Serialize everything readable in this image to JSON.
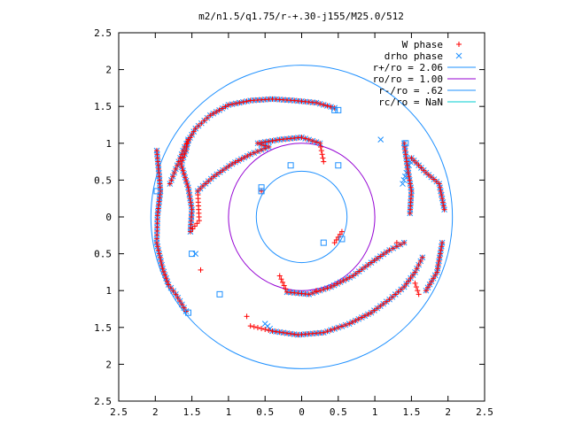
{
  "chart_data": {
    "type": "scatter",
    "title": "m2/n1.5/q1.75/r-+.30-j155/M25.0/512",
    "xlabel": "",
    "ylabel": "",
    "xlim": [
      -2.5,
      2.5
    ],
    "ylim": [
      -2.5,
      2.5
    ],
    "xticks": [
      -2.5,
      -2,
      -1.5,
      -1,
      -0.5,
      0,
      0.5,
      1,
      1.5,
      2,
      2.5
    ],
    "yticks": [
      -2.5,
      -2,
      -1.5,
      -1,
      -0.5,
      0,
      0.5,
      1,
      1.5,
      2,
      2.5
    ],
    "xtick_labels": [
      "2.5",
      "2",
      "1.5",
      "1",
      "0.5",
      "0",
      "0.5",
      "1",
      "1.5",
      "2",
      "2.5"
    ],
    "ytick_labels": [
      "2.5",
      "2",
      "1.5",
      "1",
      "0.5",
      "0",
      "0.5",
      "1",
      "1.5",
      "2",
      "2.5"
    ],
    "grid": false,
    "legend_position": "top-right",
    "series": [
      {
        "name": "W phase",
        "marker": "+",
        "color": "#ff0000",
        "points": [
          [
            -1.98,
            0.9
          ],
          [
            -1.95,
            0.6
          ],
          [
            -1.93,
            0.35
          ],
          [
            -1.97,
            0.02
          ],
          [
            -1.98,
            -0.35
          ],
          [
            -1.9,
            -0.7
          ],
          [
            -1.82,
            -0.92
          ],
          [
            -1.72,
            -1.05
          ],
          [
            -1.58,
            -1.28
          ],
          [
            -1.8,
            0.45
          ],
          [
            -1.7,
            0.7
          ],
          [
            -1.6,
            0.95
          ],
          [
            -1.45,
            1.2
          ],
          [
            -1.25,
            1.38
          ],
          [
            -1.0,
            1.52
          ],
          [
            -0.7,
            1.58
          ],
          [
            -0.4,
            1.6
          ],
          [
            -0.1,
            1.58
          ],
          [
            0.2,
            1.55
          ],
          [
            0.45,
            1.48
          ],
          [
            -1.55,
            1.05
          ],
          [
            -1.58,
            0.9
          ],
          [
            -1.65,
            0.72
          ],
          [
            -1.55,
            0.4
          ],
          [
            -1.5,
            0.1
          ],
          [
            -1.52,
            -0.2
          ],
          [
            -1.4,
            -0.05
          ],
          [
            -1.42,
            0.35
          ],
          [
            -1.35,
            0.42
          ],
          [
            -1.2,
            0.55
          ],
          [
            -0.95,
            0.72
          ],
          [
            -0.7,
            0.85
          ],
          [
            -0.45,
            0.95
          ],
          [
            -0.6,
            1.0
          ],
          [
            -0.3,
            1.05
          ],
          [
            0.0,
            1.08
          ],
          [
            0.25,
            1.0
          ],
          [
            0.3,
            0.75
          ],
          [
            1.4,
            1.0
          ],
          [
            1.45,
            0.65
          ],
          [
            1.5,
            0.35
          ],
          [
            1.48,
            0.05
          ],
          [
            1.5,
            0.8
          ],
          [
            1.7,
            0.6
          ],
          [
            1.88,
            0.45
          ],
          [
            1.95,
            0.1
          ],
          [
            1.92,
            -0.35
          ],
          [
            1.85,
            -0.75
          ],
          [
            1.7,
            -1.0
          ],
          [
            1.4,
            -0.35
          ],
          [
            1.2,
            -0.45
          ],
          [
            0.95,
            -0.62
          ],
          [
            0.7,
            -0.8
          ],
          [
            0.4,
            -0.95
          ],
          [
            0.1,
            -1.05
          ],
          [
            -0.2,
            -1.02
          ],
          [
            -0.3,
            -0.8
          ],
          [
            1.65,
            -0.55
          ],
          [
            1.55,
            -0.75
          ],
          [
            1.4,
            -0.95
          ],
          [
            1.2,
            -1.12
          ],
          [
            0.95,
            -1.3
          ],
          [
            0.65,
            -1.45
          ],
          [
            0.3,
            -1.57
          ],
          [
            -0.05,
            -1.6
          ],
          [
            -0.4,
            -1.55
          ],
          [
            -0.7,
            -1.48
          ],
          [
            1.55,
            -0.9
          ],
          [
            1.6,
            -1.05
          ],
          [
            0.45,
            -0.35
          ],
          [
            0.55,
            -0.2
          ],
          [
            0.2,
            -1.0
          ],
          [
            -0.55,
            0.35
          ],
          [
            -1.38,
            -0.72
          ],
          [
            -0.75,
            -1.35
          ],
          [
            1.3,
            -0.35
          ]
        ]
      },
      {
        "name": "drho phase",
        "marker": "x",
        "color": "#1e90ff",
        "points": [
          [
            -1.98,
            0.9
          ],
          [
            -1.95,
            0.6
          ],
          [
            -1.93,
            0.35
          ],
          [
            -1.97,
            0.02
          ],
          [
            -1.98,
            -0.35
          ],
          [
            -1.9,
            -0.7
          ],
          [
            -1.82,
            -0.92
          ],
          [
            -1.72,
            -1.05
          ],
          [
            -1.58,
            -1.28
          ],
          [
            -1.8,
            0.45
          ],
          [
            -1.7,
            0.7
          ],
          [
            -1.6,
            0.95
          ],
          [
            -1.45,
            1.2
          ],
          [
            -1.25,
            1.38
          ],
          [
            -1.0,
            1.52
          ],
          [
            -0.7,
            1.58
          ],
          [
            -0.4,
            1.6
          ],
          [
            -0.1,
            1.58
          ],
          [
            0.2,
            1.55
          ],
          [
            0.45,
            1.48
          ],
          [
            -1.55,
            1.05
          ],
          [
            -1.58,
            0.9
          ],
          [
            -1.65,
            0.72
          ],
          [
            -1.55,
            0.4
          ],
          [
            -1.5,
            0.1
          ],
          [
            -1.52,
            -0.2
          ],
          [
            -1.42,
            0.35
          ],
          [
            -1.35,
            0.42
          ],
          [
            -1.2,
            0.55
          ],
          [
            -0.95,
            0.72
          ],
          [
            -0.7,
            0.85
          ],
          [
            -0.45,
            0.95
          ],
          [
            -0.6,
            1.0
          ],
          [
            -0.3,
            1.05
          ],
          [
            0.0,
            1.08
          ],
          [
            0.25,
            1.0
          ],
          [
            1.4,
            1.0
          ],
          [
            1.45,
            0.65
          ],
          [
            1.5,
            0.35
          ],
          [
            1.48,
            0.05
          ],
          [
            1.08,
            1.05
          ],
          [
            1.38,
            0.45
          ],
          [
            1.5,
            0.8
          ],
          [
            1.7,
            0.6
          ],
          [
            1.88,
            0.45
          ],
          [
            1.95,
            0.1
          ],
          [
            1.92,
            -0.35
          ],
          [
            1.85,
            -0.75
          ],
          [
            1.7,
            -1.0
          ],
          [
            1.4,
            -0.35
          ],
          [
            1.2,
            -0.45
          ],
          [
            0.95,
            -0.62
          ],
          [
            0.7,
            -0.8
          ],
          [
            0.4,
            -0.95
          ],
          [
            0.1,
            -1.05
          ],
          [
            -0.2,
            -1.02
          ],
          [
            1.65,
            -0.55
          ],
          [
            1.55,
            -0.75
          ],
          [
            1.4,
            -0.95
          ],
          [
            1.2,
            -1.12
          ],
          [
            0.95,
            -1.3
          ],
          [
            0.65,
            -1.45
          ],
          [
            0.3,
            -1.57
          ],
          [
            -0.05,
            -1.6
          ],
          [
            -0.4,
            -1.55
          ],
          [
            -0.5,
            -1.45
          ],
          [
            -1.45,
            -0.5
          ]
        ]
      },
      {
        "name": "r+/ro = 2.06",
        "type": "circle",
        "radius": 2.06,
        "color": "#1e90ff"
      },
      {
        "name": "ro/ro = 1.00",
        "type": "circle",
        "radius": 1.0,
        "color": "#9400d3"
      },
      {
        "name": "r-/ro = .62",
        "type": "circle",
        "radius": 0.62,
        "color": "#1e90ff"
      },
      {
        "name": "rc/ro = NaN",
        "type": "circle",
        "radius": null,
        "color": "#00ced1"
      }
    ],
    "open_square_markers": [
      [
        -1.98,
        0.35
      ],
      [
        -1.55,
        -1.3
      ],
      [
        -1.5,
        -0.5
      ],
      [
        -1.12,
        -1.05
      ],
      [
        -0.55,
        0.4
      ],
      [
        -0.55,
        0.35
      ],
      [
        -0.15,
        0.7
      ],
      [
        0.5,
        1.45
      ],
      [
        0.45,
        1.45
      ],
      [
        0.5,
        0.7
      ],
      [
        0.55,
        -0.3
      ],
      [
        0.3,
        -0.35
      ],
      [
        1.42,
        1.0
      ]
    ]
  },
  "legend": [
    {
      "label": "W phase",
      "marker": "+",
      "color": "#ff0000"
    },
    {
      "label": "drho phase",
      "marker": "x",
      "color": "#1e90ff"
    },
    {
      "label": "r+/ro = 2.06",
      "marker": "line",
      "color": "#1e90ff"
    },
    {
      "label": "ro/ro = 1.00",
      "marker": "line",
      "color": "#9400d3"
    },
    {
      "label": "r-/ro = .62",
      "marker": "line",
      "color": "#1e90ff"
    },
    {
      "label": "rc/ro = NaN",
      "marker": "line",
      "color": "#00ced1"
    }
  ]
}
